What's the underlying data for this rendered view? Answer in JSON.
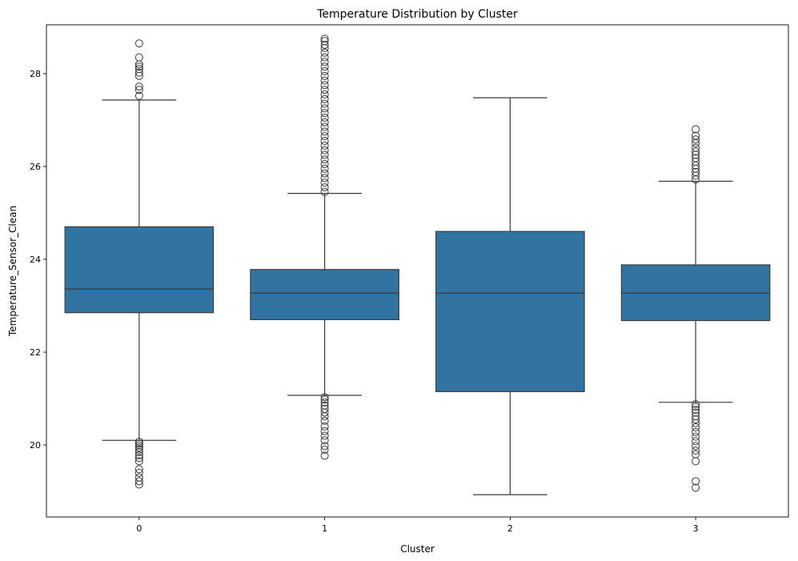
{
  "chart_data": {
    "type": "box",
    "title": "Temperature Distribution by Cluster",
    "xlabel": "Cluster",
    "ylabel": "Temperature_Sensor_Clean",
    "ylim": [
      18.45,
      29.05
    ],
    "yticks": [
      20,
      22,
      24,
      26,
      28
    ],
    "categories": [
      "0",
      "1",
      "2",
      "3"
    ],
    "box_color": "#3274a1",
    "line_color": "#3b3b3b",
    "boxes": [
      {
        "category": "0",
        "whisker_low": 20.1,
        "q1": 22.85,
        "median": 23.36,
        "q3": 24.7,
        "whisker_high": 27.43,
        "outliers_low": [
          20.07,
          20.03,
          19.99,
          19.95,
          19.9,
          19.85,
          19.78,
          19.72,
          19.65,
          19.48,
          19.4,
          19.3,
          19.22,
          19.15
        ],
        "outliers_high": [
          27.52,
          27.65,
          27.72,
          27.95,
          28.02,
          28.1,
          28.15,
          28.2,
          28.35,
          28.65
        ]
      },
      {
        "category": "1",
        "whisker_low": 21.07,
        "q1": 22.7,
        "median": 23.27,
        "q3": 23.78,
        "whisker_high": 25.42,
        "outliers_low": [
          21.03,
          20.98,
          20.92,
          20.85,
          20.78,
          20.7,
          20.62,
          20.52,
          20.4,
          20.3,
          20.2,
          20.1,
          19.98,
          19.9,
          19.77
        ],
        "outliers_high": [
          25.45,
          25.55,
          25.65,
          25.75,
          25.85,
          25.95,
          26.05,
          26.15,
          26.25,
          26.35,
          26.45,
          26.55,
          26.65,
          26.75,
          26.85,
          26.95,
          27.05,
          27.15,
          27.25,
          27.35,
          27.45,
          27.55,
          27.65,
          27.75,
          27.85,
          27.95,
          28.05,
          28.15,
          28.25,
          28.35,
          28.45,
          28.55,
          28.62,
          28.7,
          28.75
        ]
      },
      {
        "category": "2",
        "whisker_low": 18.93,
        "q1": 21.15,
        "median": 23.27,
        "q3": 24.6,
        "whisker_high": 27.48,
        "outliers_low": [],
        "outliers_high": []
      },
      {
        "category": "3",
        "whisker_low": 20.92,
        "q1": 22.68,
        "median": 23.27,
        "q3": 23.88,
        "whisker_high": 25.68,
        "outliers_low": [
          20.88,
          20.82,
          20.76,
          20.7,
          20.62,
          20.55,
          20.47,
          20.38,
          20.28,
          20.18,
          20.08,
          19.98,
          19.88,
          19.8,
          19.65,
          19.22,
          19.08
        ],
        "outliers_high": [
          25.72,
          25.8,
          25.88,
          25.95,
          26.02,
          26.1,
          26.18,
          26.25,
          26.32,
          26.4,
          26.5,
          26.58,
          26.66,
          26.8
        ]
      }
    ]
  }
}
